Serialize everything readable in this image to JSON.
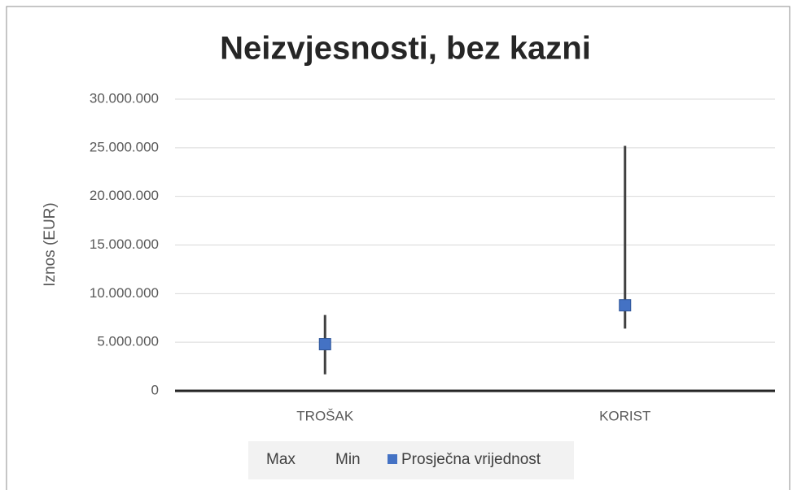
{
  "chart_data": {
    "type": "high-low",
    "title": "Neizvjesnosti, bez kazni",
    "y_label": "Iznos (EUR)",
    "categories": [
      "TROŠAK",
      "KORIST"
    ],
    "series": [
      {
        "name": "Max",
        "color": "#404040",
        "values": [
          7800000,
          25200000
        ]
      },
      {
        "name": "Min",
        "color": "#404040",
        "values": [
          1700000,
          6400000
        ]
      },
      {
        "name": "Prosječna vrijednost",
        "color": "#4472c4",
        "values": [
          4800000,
          8800000
        ]
      }
    ],
    "ylim": [
      0,
      30000000
    ],
    "yticks": [
      0,
      {
        "value": 5000000,
        "label": "5.000.000"
      },
      {
        "value": 10000000,
        "label": "10.000.000"
      },
      {
        "value": 15000000,
        "label": "15.000.000"
      },
      {
        "value": 20000000,
        "label": "20.000.000"
      },
      {
        "value": 25000000,
        "label": "25.000.000"
      },
      {
        "value": 30000000,
        "label": "30.000.000"
      }
    ],
    "grid": true,
    "legend": "bottom"
  }
}
